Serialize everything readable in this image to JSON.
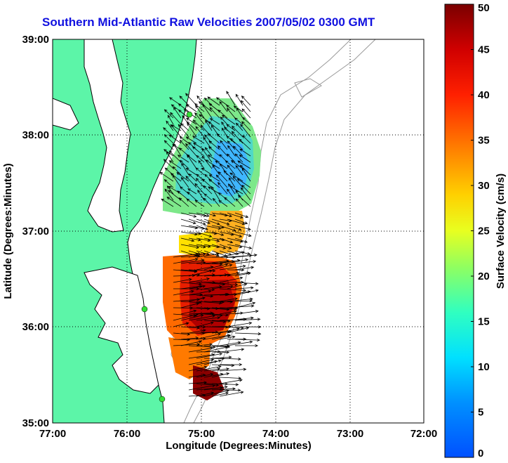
{
  "title": "Southern Mid-Atlantic Raw Velocities 2007/05/02 0300 GMT",
  "x_axis": {
    "label": "Longitude (Degrees:Minutes)",
    "ticks": [
      "77:00",
      "76:00",
      "75:00",
      "74:00",
      "73:00",
      "72:00"
    ]
  },
  "y_axis": {
    "label": "Latitude (Degrees:Minutes)",
    "ticks": [
      "39:00",
      "38:00",
      "37:00",
      "36:00",
      "35:00"
    ]
  },
  "colorbar": {
    "label": "Surface Velocity (cm/s)",
    "ticks": [
      "0",
      "5",
      "10",
      "15",
      "20",
      "25",
      "30",
      "35",
      "40",
      "45",
      "50"
    ],
    "min": 0,
    "max": 50,
    "colormap": "jet"
  },
  "colors": {
    "title": "#1010e0",
    "land": "#5cf5a8",
    "coastline": "#000000",
    "bathymetry": "#999999",
    "stations": "#33dd33"
  },
  "grid": "dotted",
  "stations": [
    {
      "lon": -75.16,
      "lat": 38.2
    },
    {
      "lon": -75.71,
      "lat": 36.19
    },
    {
      "lon": -75.48,
      "lat": 35.3
    }
  ]
}
